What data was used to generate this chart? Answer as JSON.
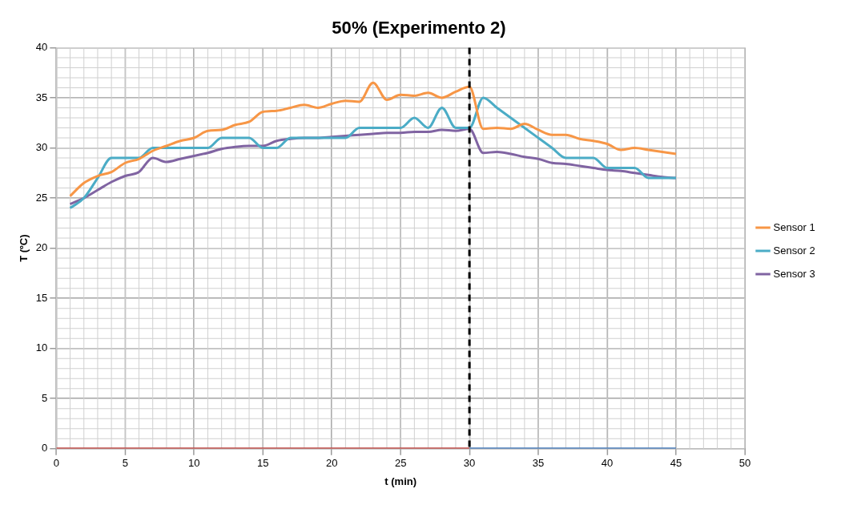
{
  "chart_data": {
    "type": "line",
    "title": "50% (Experimento 2)",
    "xlabel": "t (min)",
    "ylabel": "T (ºC)",
    "x": [
      1,
      2,
      3,
      4,
      5,
      6,
      7,
      8,
      9,
      10,
      11,
      12,
      13,
      14,
      15,
      16,
      17,
      18,
      19,
      20,
      21,
      22,
      23,
      24,
      25,
      26,
      27,
      28,
      29,
      30,
      31,
      32,
      33,
      34,
      35,
      36,
      37,
      38,
      39,
      40,
      41,
      42,
      43,
      44,
      45
    ],
    "series": [
      {
        "name": "Sensor 1",
        "color": "#f79646",
        "values": [
          25.2,
          26.5,
          27.2,
          27.6,
          28.5,
          28.9,
          29.7,
          30.2,
          30.7,
          31.0,
          31.7,
          31.8,
          32.3,
          32.6,
          33.6,
          33.7,
          34.0,
          34.3,
          34.0,
          34.4,
          34.7,
          34.6,
          36.5,
          34.8,
          35.3,
          35.2,
          35.5,
          35.0,
          35.6,
          36.1,
          31.9,
          32.0,
          31.9,
          32.4,
          31.8,
          31.3,
          31.3,
          30.9,
          30.7,
          30.4,
          29.8,
          30.0,
          29.8,
          29.6,
          29.4
        ]
      },
      {
        "name": "Sensor 2",
        "color": "#4bacc6",
        "values": [
          24,
          25,
          27,
          29,
          29,
          29,
          30,
          30,
          30,
          30,
          30,
          31,
          31,
          31,
          30,
          30,
          31,
          31,
          31,
          31,
          31,
          32,
          32,
          32,
          32,
          33,
          32,
          34,
          32,
          32,
          35,
          34,
          33,
          32,
          31,
          30,
          29,
          29,
          29,
          28,
          28,
          28,
          27,
          27,
          27
        ]
      },
      {
        "name": "Sensor 3",
        "color": "#8064a2",
        "values": [
          24.4,
          25.0,
          25.8,
          26.6,
          27.2,
          27.6,
          29.0,
          28.6,
          28.9,
          29.2,
          29.5,
          29.9,
          30.1,
          30.2,
          30.2,
          30.7,
          30.9,
          31.0,
          31.0,
          31.1,
          31.2,
          31.3,
          31.4,
          31.5,
          31.5,
          31.6,
          31.6,
          31.8,
          31.7,
          31.9,
          29.5,
          29.6,
          29.4,
          29.1,
          28.9,
          28.5,
          28.4,
          28.2,
          28.0,
          27.8,
          27.7,
          27.5,
          27.3,
          27.1,
          27.0
        ]
      },
      {
        "color": "#c0504d",
        "x": [
          0,
          30
        ],
        "values": [
          0,
          0
        ]
      },
      {
        "color": "#4f81bd",
        "x": [
          30,
          45
        ],
        "values": [
          0,
          0
        ]
      }
    ],
    "xlim": [
      0,
      50
    ],
    "xticks": [
      0,
      5,
      10,
      15,
      20,
      25,
      30,
      35,
      40,
      45,
      50
    ],
    "ylim": [
      0,
      40
    ],
    "yticks": [
      0,
      5,
      10,
      15,
      20,
      25,
      30,
      35,
      40
    ],
    "ref_lines": [
      {
        "axis": "x",
        "value": 30,
        "color": "#000000",
        "line_style": "dashed"
      }
    ],
    "grid": true,
    "legend": "right",
    "marker": "none",
    "line_style": "solid"
  }
}
